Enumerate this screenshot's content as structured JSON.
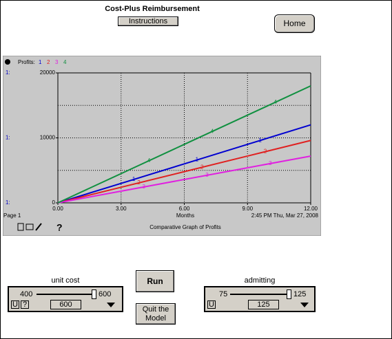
{
  "header": {
    "title": "Cost-Plus Reimbursement",
    "instructions": "Instructions",
    "home": "Home"
  },
  "chart_data": {
    "type": "line",
    "legend_title": "Profits:",
    "y_axis_prefix": "1:",
    "x": [
      0,
      3,
      6,
      9,
      12
    ],
    "series": [
      {
        "name": "1",
        "color": "#0000d0",
        "values": [
          0,
          3000,
          6000,
          9000,
          12000
        ]
      },
      {
        "name": "2",
        "color": "#e02020",
        "values": [
          0,
          2400,
          4800,
          7200,
          9600
        ]
      },
      {
        "name": "3",
        "color": "#e020e0",
        "values": [
          0,
          1800,
          3600,
          5400,
          7200
        ]
      },
      {
        "name": "4",
        "color": "#109040",
        "values": [
          0,
          4500,
          9000,
          13500,
          18000
        ]
      }
    ],
    "xlim": [
      0,
      12
    ],
    "ylim": [
      0,
      20000
    ],
    "xticks": [
      {
        "value": 0,
        "label": "0.00"
      },
      {
        "value": 3,
        "label": "3.00"
      },
      {
        "value": 6,
        "label": "6.00"
      },
      {
        "value": 9,
        "label": "9.00"
      },
      {
        "value": 12,
        "label": "12.00"
      }
    ],
    "yticks": [
      0,
      10000,
      20000
    ],
    "ygrid": [
      5000,
      10000,
      15000
    ],
    "grid": true,
    "xlabel": "Months",
    "timestamp": "2:45 PM   Thu, Mar 27, 2008",
    "page": "Page 1",
    "caption": "Comparative Graph of Profits",
    "help": "?"
  },
  "controls": {
    "unit_cost": {
      "label": "unit cost",
      "min": 400,
      "max": 600,
      "value": 600,
      "u": "U",
      "q": "?"
    },
    "admitting": {
      "label": "admitting",
      "min": 75,
      "max": 125,
      "value": 125,
      "u": "U"
    },
    "run": "Run",
    "quit": "Quit the Model"
  }
}
